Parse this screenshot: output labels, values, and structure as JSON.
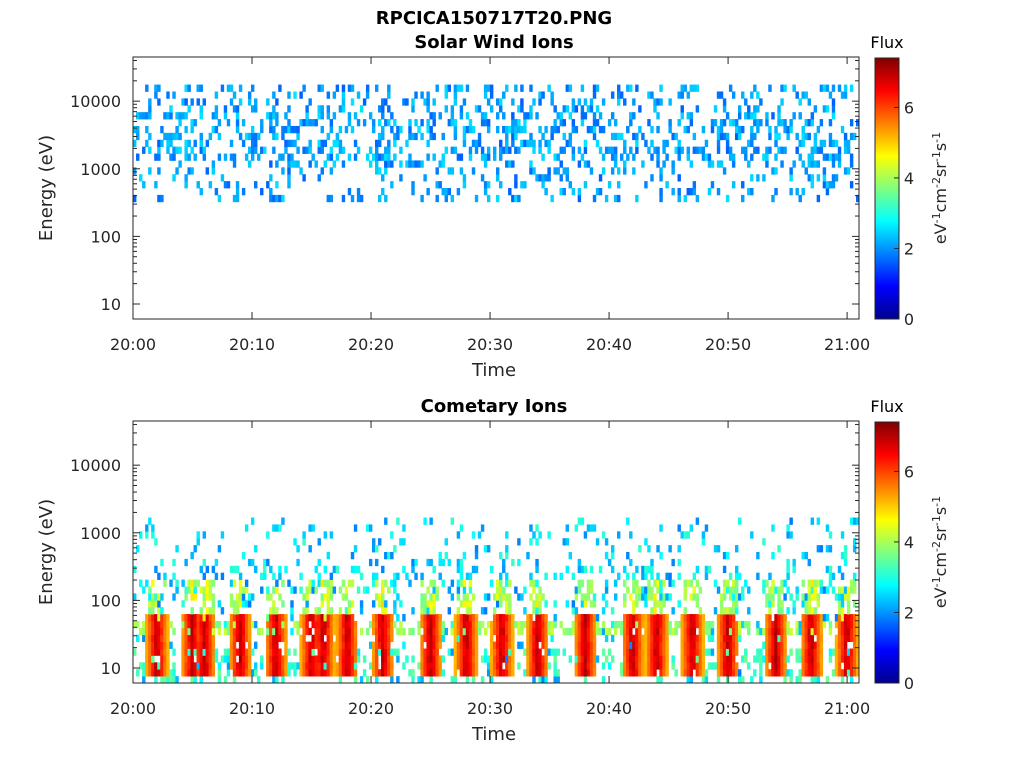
{
  "figure_title": "RPCICA150717T20.PNG",
  "chart_data": [
    {
      "type": "heatmap",
      "title": "Solar Wind Ions",
      "xlabel": "Time",
      "ylabel": "Energy (eV)",
      "x_ticks": [
        "20:00",
        "20:10",
        "20:20",
        "20:30",
        "20:40",
        "20:50",
        "21:00"
      ],
      "x_range": [
        "20:00",
        "21:01"
      ],
      "y_scale": "log",
      "y_ticks": [
        10,
        100,
        1000,
        10000
      ],
      "y_tick_labels": [
        "10",
        "100",
        "1000",
        "10000"
      ],
      "y_range": [
        6,
        45000
      ],
      "colorbar": {
        "title": "Flux",
        "unit_label": "eV-1cm-2sr-1s-1",
        "ticks": [
          0,
          2,
          4,
          6
        ],
        "tick_labels": [
          "0",
          "2",
          "4",
          "6"
        ],
        "range": [
          0,
          7.4
        ],
        "colormap": "jet"
      },
      "data_description": {
        "populated_energy_range_eV": [
          300,
          18000
        ],
        "typical_value": 2.0,
        "value_range": [
          1.6,
          2.6
        ],
        "occupancy": "sparse scattered bins across the full time range"
      }
    },
    {
      "type": "heatmap",
      "title": "Cometary Ions",
      "xlabel": "Time",
      "ylabel": "Energy (eV)",
      "x_ticks": [
        "20:00",
        "20:10",
        "20:20",
        "20:30",
        "20:40",
        "20:50",
        "21:00"
      ],
      "x_range": [
        "20:00",
        "21:01"
      ],
      "y_scale": "log",
      "y_ticks": [
        10,
        100,
        1000,
        10000
      ],
      "y_tick_labels": [
        "10",
        "100",
        "1000",
        "10000"
      ],
      "y_range": [
        6,
        45000
      ],
      "colorbar": {
        "title": "Flux",
        "unit_label": "eV-1cm-2sr-1s-1",
        "ticks": [
          0,
          2,
          4,
          6
        ],
        "tick_labels": [
          "0",
          "2",
          "4",
          "6"
        ],
        "range": [
          0,
          7.4
        ],
        "colormap": "jet"
      },
      "data_description": {
        "populated_energy_range_eV": [
          6,
          1500
        ],
        "background_value_range": [
          1.8,
          3.2
        ],
        "peak_value": 7.2,
        "peak_energy_range_eV": [
          8,
          60
        ],
        "burst_times": [
          "20:02",
          "20:05",
          "20:06",
          "20:09",
          "20:12",
          "20:15",
          "20:16",
          "20:18",
          "20:21",
          "20:25",
          "20:28",
          "20:31",
          "20:34",
          "20:38",
          "20:42",
          "20:44",
          "20:47",
          "20:50",
          "20:54",
          "20:57",
          "21:00"
        ]
      }
    }
  ]
}
